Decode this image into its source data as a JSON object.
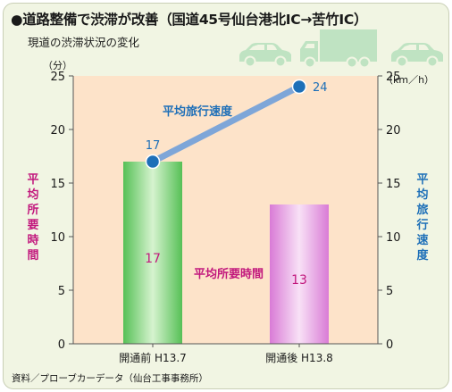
{
  "header": {
    "title": "●道路整備で渋滞が改善（国道45号仙台港北IC→苦竹IC）",
    "subtitle": "現道の渋滞状況の変化"
  },
  "footer": {
    "source": "資料／プローブカーデータ（仙台工事事務所）"
  },
  "icons": [
    "car-icon",
    "truck-icon",
    "car-icon"
  ],
  "chart_data": {
    "type": "bar",
    "categories": [
      "開通前 H13.7",
      "開通後 H13.8"
    ],
    "series": [
      {
        "name": "平均所要時間",
        "type": "bar",
        "axis": "left",
        "values": [
          17,
          13
        ],
        "colors": [
          "#6fcf6f",
          "#e59be2"
        ]
      },
      {
        "name": "平均旅行速度",
        "type": "line",
        "axis": "right",
        "values": [
          17,
          24
        ],
        "color": "#7ea6d8"
      }
    ],
    "y_left": {
      "label": "平均所要時間",
      "unit": "（分）",
      "range": [
        0,
        25
      ],
      "ticks": [
        0,
        5,
        10,
        15,
        20,
        25
      ],
      "color": "#c2187d"
    },
    "y_right": {
      "label": "平均旅行速度",
      "unit": "（km／h）",
      "range": [
        0,
        25
      ],
      "ticks": [
        0,
        5,
        10,
        15,
        20,
        25
      ],
      "color": "#1d6fb8"
    },
    "plot_background": "#fde3c9",
    "grid": false,
    "legend": "none"
  }
}
